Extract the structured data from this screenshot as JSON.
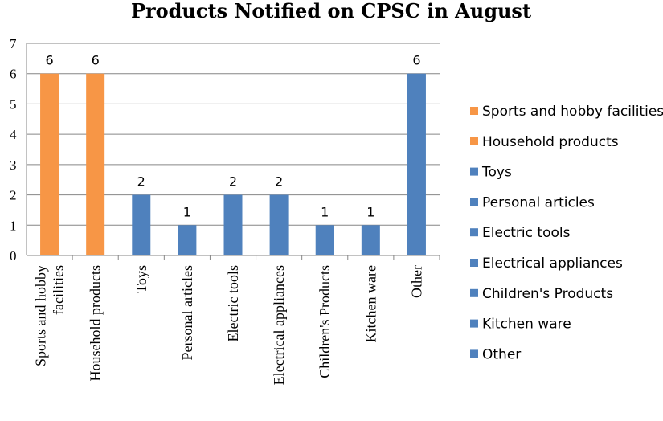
{
  "chart_data": {
    "type": "bar",
    "title": "Products Notified on CPSC in August",
    "categories": [
      "Sports and hobby facilities",
      "Household products",
      "Toys",
      "Personal articles",
      "Electric tools",
      "Electrical appliances",
      "Children's Products",
      "Kitchen ware",
      "Other"
    ],
    "category_lines": [
      [
        "Sports and hobby",
        "facilities"
      ],
      [
        "Household products"
      ],
      [
        "Toys"
      ],
      [
        "Personal articles"
      ],
      [
        "Electric tools"
      ],
      [
        "Electrical appliances"
      ],
      [
        "Children's Products"
      ],
      [
        "Kitchen ware"
      ],
      [
        "Other"
      ]
    ],
    "values": [
      6,
      6,
      2,
      1,
      2,
      2,
      1,
      1,
      6
    ],
    "colors": [
      "#F79646",
      "#F79646",
      "#4F81BD",
      "#4F81BD",
      "#4F81BD",
      "#4F81BD",
      "#4F81BD",
      "#4F81BD",
      "#4F81BD"
    ],
    "ylim": [
      0,
      7
    ],
    "yticks": [
      0,
      1,
      2,
      3,
      4,
      5,
      6,
      7
    ],
    "grid": true,
    "data_labels": true,
    "legend_position": "right",
    "xlabel": "",
    "ylabel": ""
  }
}
